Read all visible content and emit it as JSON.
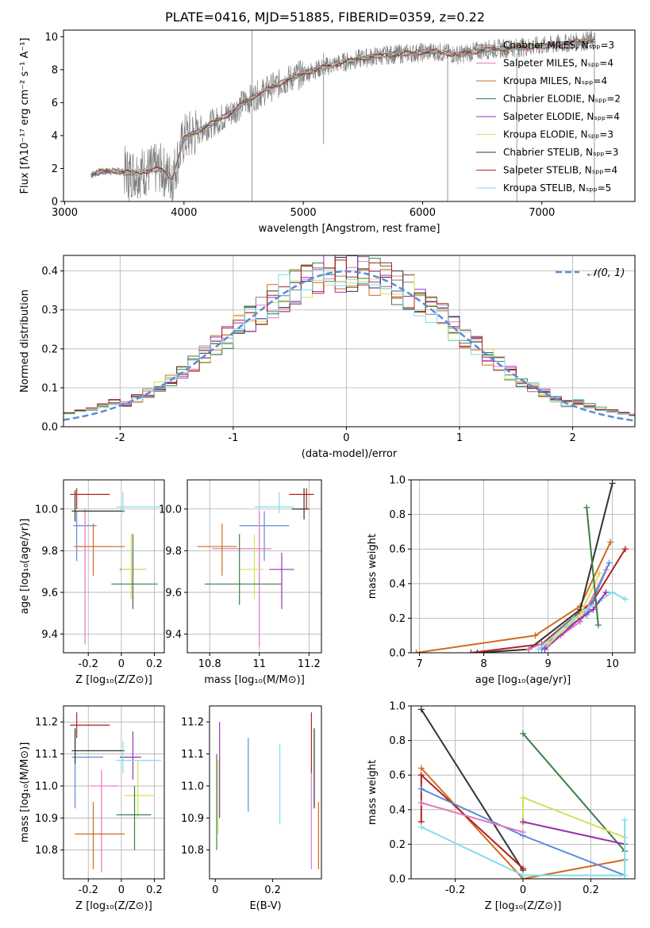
{
  "figure": {
    "title": "PLATE=0416, MJD=51885, FIBERID=0359, z=0.22"
  },
  "chart_data": [
    {
      "id": "spectrum",
      "type": "line",
      "xlabel": "wavelength [Angstrom, rest frame]",
      "ylabel": "Flux [fλ10⁻¹⁷ erg cm⁻² s⁻¹ A⁻¹]",
      "xlim": [
        2990,
        7780
      ],
      "ylim": [
        0,
        10.4
      ],
      "xticks": [
        3000,
        4000,
        5000,
        6000,
        7000
      ],
      "yticks": [
        0,
        2,
        4,
        6,
        8,
        10
      ],
      "grid": false,
      "legend_position": "right",
      "legend": [
        {
          "label": "Chabrier MILES, Nₛₚₚ=3",
          "color": "#7f7f7f"
        },
        {
          "label": "Salpeter MILES, Nₛₚₚ=4",
          "color": "#e377c2"
        },
        {
          "label": "Kroupa MILES, Nₛₚₚ=4",
          "color": "#d2691e"
        },
        {
          "label": "Chabrier ELODIE, Nₛₚₚ=2",
          "color": "#3a7d44"
        },
        {
          "label": "Salpeter ELODIE, Nₛₚₚ=4",
          "color": "#9b30b0"
        },
        {
          "label": "Kroupa ELODIE, Nₛₚₚ=3",
          "color": "#d4e157"
        },
        {
          "label": "Chabrier STELIB, Nₛₚₚ=3",
          "color": "#333333"
        },
        {
          "label": "Salpeter STELIB, Nₛₚₚ=4",
          "color": "#b22222"
        },
        {
          "label": "Kroupa STELIB, Nₛₚₚ=5",
          "color": "#80deea"
        }
      ],
      "model_continuum": [
        [
          3220,
          1.6
        ],
        [
          3300,
          1.8
        ],
        [
          3400,
          1.85
        ],
        [
          3550,
          1.75
        ],
        [
          3650,
          1.8
        ],
        [
          3800,
          2.0
        ],
        [
          3900,
          1.4
        ],
        [
          3950,
          2.6
        ],
        [
          4000,
          3.8
        ],
        [
          4100,
          4.2
        ],
        [
          4200,
          4.6
        ],
        [
          4300,
          5.0
        ],
        [
          4400,
          5.4
        ],
        [
          4500,
          6.0
        ],
        [
          4700,
          6.8
        ],
        [
          4900,
          7.5
        ],
        [
          5100,
          8.0
        ],
        [
          5300,
          8.4
        ],
        [
          5500,
          8.7
        ],
        [
          5700,
          8.9
        ],
        [
          5900,
          9.0
        ],
        [
          6100,
          9.1
        ],
        [
          6300,
          8.9
        ],
        [
          6500,
          9.2
        ],
        [
          6700,
          9.3
        ],
        [
          6900,
          9.4
        ],
        [
          7100,
          9.5
        ],
        [
          7300,
          9.7
        ],
        [
          7450,
          9.8
        ]
      ],
      "observed_envelope": [
        [
          3220,
          1.6
        ],
        [
          3450,
          1.9
        ],
        [
          3550,
          2.8
        ],
        [
          3700,
          3.4
        ],
        [
          3900,
          3.3
        ],
        [
          4100,
          5.8
        ],
        [
          4300,
          6.0
        ],
        [
          4600,
          7.3
        ],
        [
          5000,
          8.6
        ],
        [
          5400,
          9.2
        ],
        [
          6000,
          9.5
        ],
        [
          6600,
          9.6
        ],
        [
          7200,
          9.9
        ],
        [
          7450,
          10.0
        ]
      ]
    },
    {
      "id": "residuals",
      "type": "histogram",
      "xlabel": "(data-model)/error",
      "ylabel": "Normed distribution",
      "xlim": [
        -2.5,
        2.55
      ],
      "ylim": [
        0,
        0.44
      ],
      "xticks": [
        -2,
        -1,
        0,
        1,
        2
      ],
      "yticks": [
        0.0,
        0.1,
        0.2,
        0.3,
        0.4
      ],
      "grid": true,
      "legend_position": "top-right",
      "legend": [
        {
          "label": "𝒩(0, 1)",
          "color": "#5b8bd9"
        }
      ],
      "bin_width": 0.1,
      "series_colors": [
        "#7f7f7f",
        "#e377c2",
        "#d2691e",
        "#3a7d44",
        "#9b30b0",
        "#d4e157",
        "#333333",
        "#b22222",
        "#80deea"
      ]
    },
    {
      "id": "age-vs-Z",
      "type": "scatter",
      "xlabel": "Z [log₁₀(Z/Z⊙)]",
      "ylabel": "age  [log₁₀(age/yr)]",
      "xlim": [
        -0.35,
        0.26
      ],
      "ylim": [
        9.31,
        10.14
      ],
      "xticks": [
        -0.2,
        0.0,
        0.2
      ],
      "yticks": [
        9.4,
        9.6,
        9.8,
        10.0
      ],
      "grid": true,
      "points": [
        {
          "x": -0.27,
          "y": 9.92,
          "xerr": [
            0.02,
            0.12
          ],
          "yerr": [
            0.17,
            0.07
          ],
          "color": "#5b8bd9"
        },
        {
          "x": -0.22,
          "y": 9.82,
          "xerr": [
            0.07,
            0.18
          ],
          "yerr": [
            0.47,
            0.18
          ],
          "color": "#e377c2"
        },
        {
          "x": -0.17,
          "y": 9.82,
          "xerr": [
            0.11,
            0.19
          ],
          "yerr": [
            0.14,
            0.11
          ],
          "color": "#d2691e"
        },
        {
          "x": 0.07,
          "y": 9.71,
          "xerr": [
            0.08,
            0.08
          ],
          "yerr": [
            0.19,
            0.08
          ],
          "color": "#9b30b0"
        },
        {
          "x": 0.06,
          "y": 9.71,
          "xerr": [
            0.06,
            0.09
          ],
          "yerr": [
            0.14,
            0.17
          ],
          "color": "#d4e157"
        },
        {
          "x": 0.07,
          "y": 9.64,
          "xerr": [
            0.13,
            0.15
          ],
          "yerr": [
            0.1,
            0.24
          ],
          "color": "#3a7d44"
        },
        {
          "x": -0.28,
          "y": 9.99,
          "xerr": [
            0.02,
            0.3
          ],
          "yerr": [
            0.05,
            0.1
          ],
          "color": "#333333"
        },
        {
          "x": -0.27,
          "y": 10.07,
          "xerr": [
            0.04,
            0.2
          ],
          "yerr": [
            0.07,
            0.03
          ],
          "color": "#b22222"
        },
        {
          "x": 0.01,
          "y": 10.01,
          "xerr": [
            0.04,
            0.23
          ],
          "yerr": [
            0.03,
            0.07
          ],
          "color": "#80deea"
        }
      ]
    },
    {
      "id": "age-vs-mass",
      "type": "scatter",
      "xlabel": "mass [log₁₀(M/M⊙)]",
      "ylabel": "",
      "xlim": [
        10.71,
        11.25
      ],
      "ylim": [
        9.31,
        10.14
      ],
      "xticks": [
        10.8,
        11.0,
        11.2
      ],
      "yticks": [
        9.4,
        9.6,
        9.8,
        10.0
      ],
      "grid": true,
      "points": [
        {
          "x": 11.02,
          "y": 9.92,
          "xerr": [
            0.1,
            0.1
          ],
          "yerr": [
            0.17,
            0.07
          ],
          "color": "#5b8bd9"
        },
        {
          "x": 11.0,
          "y": 9.81,
          "xerr": [
            0.19,
            0.05
          ],
          "yerr": [
            0.47,
            0.18
          ],
          "color": "#e377c2"
        },
        {
          "x": 10.85,
          "y": 9.82,
          "xerr": [
            0.1,
            0.06
          ],
          "yerr": [
            0.14,
            0.11
          ],
          "color": "#d2691e"
        },
        {
          "x": 11.09,
          "y": 9.71,
          "xerr": [
            0.05,
            0.05
          ],
          "yerr": [
            0.19,
            0.08
          ],
          "color": "#9b30b0"
        },
        {
          "x": 10.98,
          "y": 9.71,
          "xerr": [
            0.06,
            0.04
          ],
          "yerr": [
            0.14,
            0.17
          ],
          "color": "#d4e157"
        },
        {
          "x": 10.92,
          "y": 9.64,
          "xerr": [
            0.14,
            0.17
          ],
          "yerr": [
            0.1,
            0.24
          ],
          "color": "#3a7d44"
        },
        {
          "x": 11.18,
          "y": 10.0,
          "xerr": [
            0.05,
            0.02
          ],
          "yerr": [
            0.05,
            0.1
          ],
          "color": "#333333"
        },
        {
          "x": 11.19,
          "y": 10.07,
          "xerr": [
            0.07,
            0.03
          ],
          "yerr": [
            0.07,
            0.03
          ],
          "color": "#b22222"
        },
        {
          "x": 11.08,
          "y": 10.01,
          "xerr": [
            0.1,
            0.06
          ],
          "yerr": [
            0.03,
            0.07
          ],
          "color": "#80deea"
        }
      ]
    },
    {
      "id": "mass-weight-vs-age",
      "type": "line",
      "xlabel": "age  [log₁₀(age/yr)]",
      "ylabel": "mass weight",
      "xlim": [
        6.87,
        10.35
      ],
      "ylim": [
        0,
        1
      ],
      "xticks": [
        7,
        8,
        9,
        10
      ],
      "yticks": [
        0.0,
        0.2,
        0.4,
        0.6,
        0.8,
        1.0
      ],
      "grid": true,
      "series": [
        {
          "color": "#d2691e",
          "x": [
            6.95,
            8.8,
            9.5,
            9.97
          ],
          "y": [
            0.0,
            0.1,
            0.27,
            0.64
          ]
        },
        {
          "color": "#333333",
          "x": [
            7.9,
            8.7,
            9.5,
            10.0
          ],
          "y": [
            0.0,
            0.02,
            0.25,
            0.98
          ]
        },
        {
          "color": "#b22222",
          "x": [
            7.8,
            8.9,
            9.7,
            10.2
          ],
          "y": [
            0.0,
            0.05,
            0.3,
            0.6
          ]
        },
        {
          "color": "#e377c2",
          "x": [
            8.7,
            9.2,
            9.5,
            9.9
          ],
          "y": [
            0.02,
            0.1,
            0.18,
            0.48
          ]
        },
        {
          "color": "#5b8bd9",
          "x": [
            8.9,
            9.3,
            9.6,
            9.95
          ],
          "y": [
            0.02,
            0.15,
            0.22,
            0.52
          ]
        },
        {
          "color": "#80deea",
          "x": [
            8.85,
            9.4,
            9.8,
            10.0,
            10.2
          ],
          "y": [
            0.02,
            0.2,
            0.3,
            0.35,
            0.31
          ]
        },
        {
          "color": "#9b30b0",
          "x": [
            8.95,
            9.5,
            9.7,
            9.9
          ],
          "y": [
            0.02,
            0.2,
            0.25,
            0.35
          ]
        },
        {
          "color": "#d4e157",
          "x": [
            9.0,
            9.5,
            9.8
          ],
          "y": [
            0.05,
            0.22,
            0.46
          ]
        },
        {
          "color": "#3a7d44",
          "x": [
            9.6,
            9.78
          ],
          "y": [
            0.84,
            0.16
          ]
        }
      ]
    },
    {
      "id": "mass-vs-Z",
      "type": "scatter",
      "xlabel": "Z [log₁₀(Z/Z⊙)]",
      "ylabel": "mass [log₁₀(M/M⊙)]",
      "xlim": [
        -0.35,
        0.26
      ],
      "ylim": [
        10.71,
        11.25
      ],
      "xticks": [
        -0.2,
        0.0,
        0.2
      ],
      "yticks": [
        10.8,
        10.9,
        11.0,
        11.1,
        11.2
      ],
      "grid": true,
      "points": [
        {
          "x": -0.28,
          "y": 11.09,
          "xerr": [
            0.02,
            0.17
          ],
          "yerr": [
            0.16,
            0.08
          ],
          "color": "#5b8bd9"
        },
        {
          "x": -0.12,
          "y": 11.0,
          "xerr": [
            0.07,
            0.1
          ],
          "yerr": [
            0.27,
            0.05
          ],
          "color": "#e377c2"
        },
        {
          "x": -0.17,
          "y": 10.85,
          "xerr": [
            0.11,
            0.19
          ],
          "yerr": [
            0.11,
            0.1
          ],
          "color": "#d2691e"
        },
        {
          "x": 0.07,
          "y": 11.09,
          "xerr": [
            0.08,
            0.05
          ],
          "yerr": [
            0.07,
            0.08
          ],
          "color": "#9b30b0"
        },
        {
          "x": 0.1,
          "y": 10.97,
          "xerr": [
            0.08,
            0.1
          ],
          "yerr": [
            0.07,
            0.11
          ],
          "color": "#d4e157"
        },
        {
          "x": 0.08,
          "y": 10.91,
          "xerr": [
            0.11,
            0.1
          ],
          "yerr": [
            0.11,
            0.09
          ],
          "color": "#3a7d44"
        },
        {
          "x": -0.28,
          "y": 11.11,
          "xerr": [
            0.02,
            0.3
          ],
          "yerr": [
            0.04,
            0.07
          ],
          "color": "#333333"
        },
        {
          "x": -0.27,
          "y": 11.19,
          "xerr": [
            0.04,
            0.2
          ],
          "yerr": [
            0.04,
            0.04
          ],
          "color": "#b22222"
        },
        {
          "x": 0.01,
          "y": 11.08,
          "xerr": [
            0.04,
            0.23
          ],
          "yerr": [
            0.04,
            0.06
          ],
          "color": "#80deea"
        }
      ]
    },
    {
      "id": "mass-vs-EBV",
      "type": "scatter",
      "xlabel": "E(B-V)",
      "ylabel": "",
      "xlim": [
        -0.02,
        0.37
      ],
      "ylim": [
        10.71,
        11.25
      ],
      "xticks": [
        0.0,
        0.2
      ],
      "yticks": [
        10.8,
        10.9,
        11.0,
        11.1,
        11.2
      ],
      "grid": false,
      "points": [
        {
          "x": 0.115,
          "y": 11.03,
          "xerr": [
            0,
            0
          ],
          "yerr": [
            0.11,
            0.12
          ],
          "color": "#5b8bd9"
        },
        {
          "x": 0.335,
          "y": 10.9,
          "xerr": [
            0,
            0
          ],
          "yerr": [
            0.16,
            0.14
          ],
          "color": "#e377c2"
        },
        {
          "x": 0.36,
          "y": 10.85,
          "xerr": [
            0,
            0
          ],
          "yerr": [
            0.11,
            0.1
          ],
          "color": "#d2691e"
        },
        {
          "x": 0.015,
          "y": 11.07,
          "xerr": [
            0,
            0
          ],
          "yerr": [
            0.17,
            0.13
          ],
          "color": "#9b30b0"
        },
        {
          "x": 0.01,
          "y": 10.97,
          "xerr": [
            0,
            0
          ],
          "yerr": [
            0.12,
            0.11
          ],
          "color": "#d4e157"
        },
        {
          "x": 0.005,
          "y": 10.91,
          "xerr": [
            0,
            0
          ],
          "yerr": [
            0.11,
            0.19
          ],
          "color": "#3a7d44"
        },
        {
          "x": 0.345,
          "y": 11.06,
          "xerr": [
            0,
            0
          ],
          "yerr": [
            0.13,
            0.12
          ],
          "color": "#333333"
        },
        {
          "x": 0.335,
          "y": 11.13,
          "xerr": [
            0,
            0
          ],
          "yerr": [
            0.09,
            0.1
          ],
          "color": "#b22222"
        },
        {
          "x": 0.225,
          "y": 11.01,
          "xerr": [
            0,
            0
          ],
          "yerr": [
            0.13,
            0.12
          ],
          "color": "#80deea"
        }
      ]
    },
    {
      "id": "mass-weight-vs-Z",
      "type": "line",
      "xlabel": "Z [log₁₀(Z/Z⊙)]",
      "ylabel": "mass weight",
      "xlim": [
        -0.33,
        0.33
      ],
      "ylim": [
        0,
        1
      ],
      "xticks": [
        -0.2,
        0.0,
        0.2
      ],
      "yticks": [
        0.0,
        0.2,
        0.4,
        0.6,
        0.8,
        1.0
      ],
      "grid": true,
      "series": [
        {
          "color": "#333333",
          "x": [
            -0.3,
            0.0
          ],
          "y": [
            0.98,
            0.05
          ]
        },
        {
          "color": "#3a7d44",
          "x": [
            0.0,
            0.3
          ],
          "y": [
            0.84,
            0.16
          ]
        },
        {
          "color": "#d2691e",
          "x": [
            -0.3,
            0.0,
            0.3
          ],
          "y": [
            0.64,
            0.0,
            0.11
          ]
        },
        {
          "color": "#b22222",
          "x": [
            -0.3,
            -0.3,
            0.0
          ],
          "y": [
            0.33,
            0.6,
            0.06
          ]
        },
        {
          "color": "#5b8bd9",
          "x": [
            -0.3,
            0.0,
            0.3
          ],
          "y": [
            0.52,
            0.25,
            0.02
          ]
        },
        {
          "color": "#e377c2",
          "x": [
            -0.3,
            0.0
          ],
          "y": [
            0.44,
            0.27
          ]
        },
        {
          "color": "#d4e157",
          "x": [
            0.0,
            0.0,
            0.3
          ],
          "y": [
            0.32,
            0.47,
            0.24
          ]
        },
        {
          "color": "#9b30b0",
          "x": [
            0.0,
            0.3
          ],
          "y": [
            0.33,
            0.2
          ]
        },
        {
          "color": "#80deea",
          "x": [
            -0.3,
            0.0,
            0.3,
            0.3
          ],
          "y": [
            0.3,
            0.02,
            0.02,
            0.34
          ]
        }
      ]
    }
  ]
}
